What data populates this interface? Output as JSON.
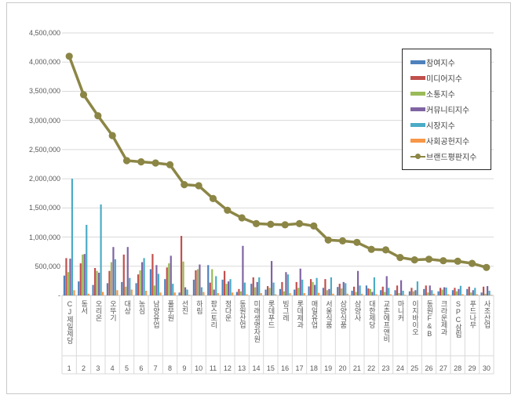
{
  "chart_data": {
    "type": "bar+line",
    "title": "",
    "legend_position": "top-right",
    "grid": "horizontal",
    "ylim": [
      0,
      4500000
    ],
    "y_tick_step": 500000,
    "y_zero_label": "-",
    "categories": [
      "CJ제일제당",
      "동서",
      "오리온",
      "오뚜기",
      "대상",
      "농심",
      "남양유업",
      "풀무원",
      "선진",
      "하림",
      "팜스토리",
      "정다운",
      "동원산업",
      "미래생명자원",
      "롯데푸드",
      "빙그레",
      "롯데제과",
      "매일유업",
      "서울식품",
      "삼양식품",
      "삼양사",
      "대한제당",
      "교촌에프앤비",
      "마니커",
      "이지바이오",
      "동원F&B",
      "크라운제과",
      "SPC삼립",
      "푸드나무",
      "사조산업"
    ],
    "category_numbers": [
      "1",
      "2",
      "3",
      "4",
      "5",
      "6",
      "7",
      "8",
      "9",
      "10",
      "11",
      "12",
      "13",
      "14",
      "15",
      "16",
      "17",
      "18",
      "19",
      "20",
      "21",
      "22",
      "23",
      "24",
      "25",
      "26",
      "27",
      "28",
      "29",
      "30"
    ],
    "series": [
      {
        "name": "참여지수",
        "type": "bar",
        "color": "#4F81BD",
        "values": [
          340000,
          240000,
          180000,
          210000,
          230000,
          210000,
          450000,
          280000,
          50000,
          270000,
          520000,
          270000,
          60000,
          200000,
          100000,
          110000,
          100000,
          155000,
          130000,
          145000,
          80000,
          170000,
          90000,
          90000,
          70000,
          110000,
          70000,
          90000,
          110000,
          50000
        ]
      },
      {
        "name": "미디어지수",
        "type": "bar",
        "color": "#C0504D",
        "values": [
          640000,
          550000,
          470000,
          420000,
          700000,
          360000,
          710000,
          480000,
          1020000,
          430000,
          220000,
          420000,
          110000,
          310000,
          160000,
          230000,
          230000,
          280000,
          280000,
          200000,
          150000,
          120000,
          150000,
          170000,
          130000,
          170000,
          130000,
          130000,
          150000,
          150000
        ]
      },
      {
        "name": "소통지수",
        "type": "bar",
        "color": "#9BBB59",
        "values": [
          400000,
          700000,
          420000,
          570000,
          150000,
          430000,
          170000,
          550000,
          580000,
          450000,
          450000,
          200000,
          70000,
          140000,
          130000,
          70000,
          130000,
          230000,
          90000,
          120000,
          60000,
          110000,
          60000,
          40000,
          70000,
          50000,
          100000,
          70000,
          50000,
          30000
        ]
      },
      {
        "name": "커뮤니티지수",
        "type": "bar",
        "color": "#8064A2",
        "values": [
          630000,
          710000,
          390000,
          830000,
          830000,
          570000,
          520000,
          680000,
          140000,
          530000,
          100000,
          240000,
          850000,
          230000,
          590000,
          400000,
          460000,
          180000,
          110000,
          230000,
          420000,
          60000,
          330000,
          260000,
          90000,
          170000,
          140000,
          110000,
          90000,
          160000
        ]
      },
      {
        "name": "시장지수",
        "type": "bar",
        "color": "#4BACC6",
        "values": [
          2000000,
          1210000,
          1560000,
          620000,
          300000,
          640000,
          370000,
          200000,
          100000,
          140000,
          330000,
          280000,
          220000,
          310000,
          220000,
          360000,
          270000,
          300000,
          310000,
          210000,
          170000,
          310000,
          130000,
          80000,
          240000,
          90000,
          135000,
          165000,
          130000,
          80000
        ]
      },
      {
        "name": "사회공헌지수",
        "type": "bar",
        "color": "#F79646",
        "values": [
          90000,
          30000,
          60000,
          90000,
          100000,
          80000,
          50000,
          50000,
          10000,
          60000,
          40000,
          50000,
          20000,
          40000,
          20000,
          40000,
          40000,
          45000,
          30000,
          30000,
          30000,
          20000,
          20000,
          10000,
          10000,
          30000,
          20000,
          20000,
          20000,
          10000
        ]
      },
      {
        "name": "브랜드평판지수",
        "type": "line",
        "color": "#8C8646",
        "values": [
          4100000,
          3440000,
          3080000,
          2740000,
          2310000,
          2290000,
          2270000,
          2240000,
          1900000,
          1880000,
          1660000,
          1460000,
          1330000,
          1230000,
          1220000,
          1210000,
          1230000,
          1190000,
          950000,
          935000,
          910000,
          790000,
          780000,
          650000,
          610000,
          620000,
          595000,
          585000,
          550000,
          480000
        ]
      }
    ]
  }
}
